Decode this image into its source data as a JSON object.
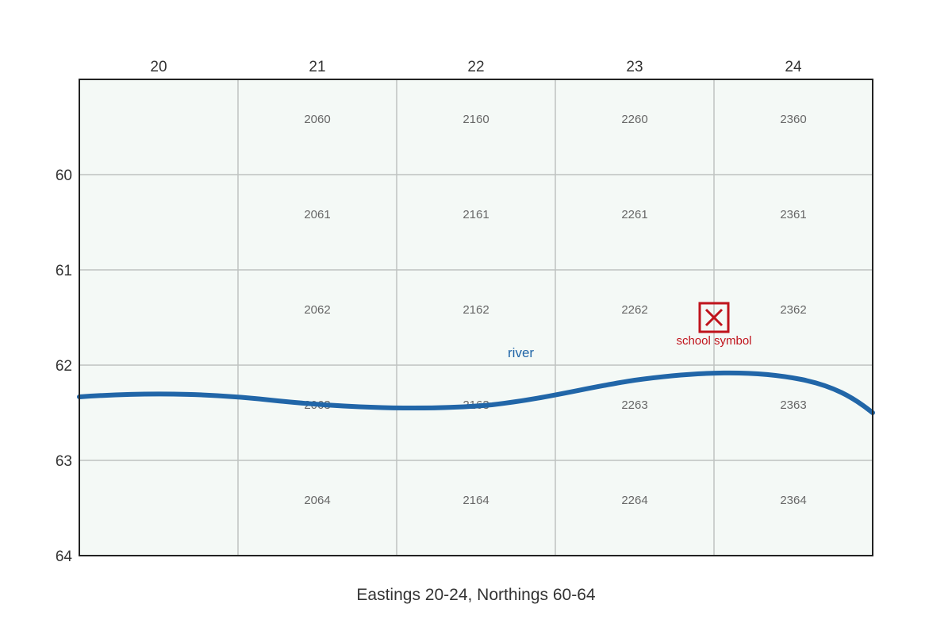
{
  "colors": {
    "map_fill": "#f4f9f6",
    "grid": "#bfc3c1",
    "border": "#222222",
    "river": "#2166a8",
    "school": "#c0141c"
  },
  "eastings": [
    "20",
    "21",
    "22",
    "23",
    "24"
  ],
  "northings": [
    "60",
    "61",
    "62",
    "63",
    "64"
  ],
  "grid_refs": [
    [
      "",
      "2060",
      "2160",
      "2260",
      "2360"
    ],
    [
      "",
      "2061",
      "2161",
      "2261",
      "2361"
    ],
    [
      "",
      "2062",
      "2162",
      "2262",
      "2362"
    ],
    [
      "",
      "2063",
      "2163",
      "2263",
      "2363"
    ],
    [
      "",
      "2064",
      "2164",
      "2264",
      "2364"
    ]
  ],
  "features": {
    "river": {
      "label": "river"
    },
    "school": {
      "label": "school symbol",
      "icon": "school-icon"
    }
  },
  "caption": "Eastings 20-24, Northings 60-64"
}
